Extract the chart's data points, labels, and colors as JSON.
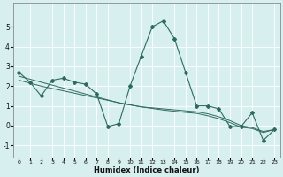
{
  "xlabel": "Humidex (Indice chaleur)",
  "background_color": "#d7efee",
  "grid_color": "#ffffff",
  "line_color": "#2d6b5e",
  "xlim": [
    -0.5,
    23.5
  ],
  "ylim": [
    -1.6,
    6.2
  ],
  "yticks": [
    -1,
    0,
    1,
    2,
    3,
    4,
    5
  ],
  "xticks": [
    0,
    1,
    2,
    3,
    4,
    5,
    6,
    7,
    8,
    9,
    10,
    11,
    12,
    13,
    14,
    15,
    16,
    17,
    18,
    19,
    20,
    21,
    22,
    23
  ],
  "series_main": {
    "x": [
      0,
      1,
      2,
      3,
      4,
      5,
      6,
      7,
      8,
      9,
      10,
      11,
      12,
      13,
      14,
      15,
      16,
      17,
      18,
      19,
      20,
      21,
      22,
      23
    ],
    "y": [
      2.7,
      2.2,
      1.5,
      2.3,
      2.4,
      2.2,
      2.1,
      1.6,
      -0.05,
      0.1,
      2.0,
      3.5,
      5.0,
      5.3,
      4.4,
      2.7,
      1.0,
      1.0,
      0.85,
      -0.05,
      -0.05,
      0.65,
      -0.75,
      -0.2
    ]
  },
  "series_trend1": {
    "x": [
      0,
      1,
      2,
      3,
      4,
      5,
      6,
      7,
      8,
      9,
      10,
      11,
      12,
      13,
      14,
      15,
      16,
      17,
      18,
      19,
      20,
      21,
      22,
      23
    ],
    "y": [
      2.5,
      2.35,
      2.2,
      2.05,
      1.9,
      1.75,
      1.6,
      1.45,
      1.3,
      1.15,
      1.05,
      0.95,
      0.9,
      0.85,
      0.8,
      0.75,
      0.7,
      0.6,
      0.45,
      0.25,
      0.0,
      -0.1,
      -0.3,
      -0.2
    ]
  },
  "series_trend2": {
    "x": [
      0,
      1,
      2,
      3,
      4,
      5,
      6,
      7,
      8,
      9,
      10,
      11,
      12,
      13,
      14,
      15,
      16,
      17,
      18,
      19,
      20,
      21,
      22,
      23
    ],
    "y": [
      2.3,
      2.15,
      2.0,
      1.88,
      1.76,
      1.64,
      1.52,
      1.4,
      1.28,
      1.16,
      1.05,
      0.95,
      0.87,
      0.79,
      0.73,
      0.67,
      0.62,
      0.5,
      0.35,
      0.15,
      -0.08,
      -0.15,
      -0.35,
      -0.2
    ]
  }
}
